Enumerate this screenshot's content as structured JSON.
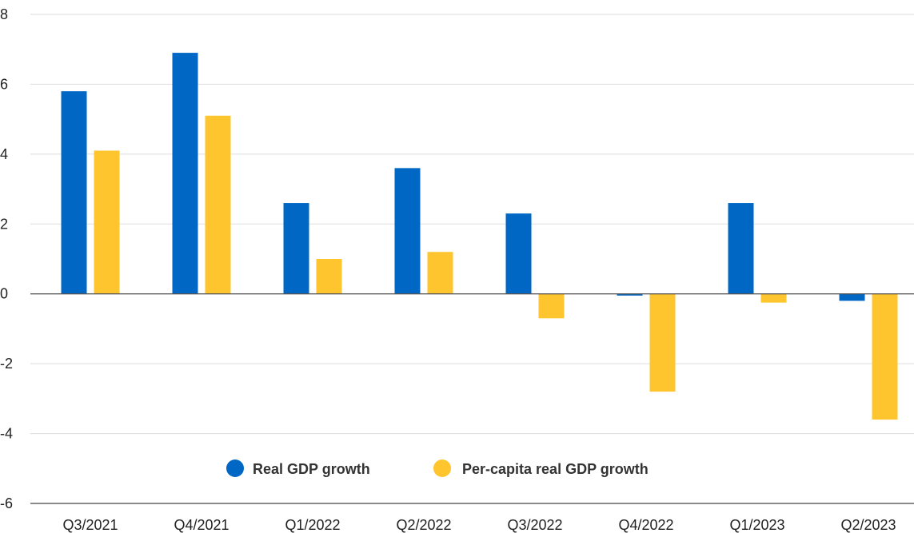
{
  "chart_data": {
    "type": "bar",
    "title": "",
    "xlabel": "",
    "ylabel": "",
    "categories": [
      "Q3/2021",
      "Q4/2021",
      "Q1/2022",
      "Q2/2022",
      "Q3/2022",
      "Q4/2022",
      "Q1/2023",
      "Q2/2023"
    ],
    "series": [
      {
        "name": "Real GDP growth",
        "color": "#0068c4",
        "values": [
          5.8,
          6.9,
          2.6,
          3.6,
          2.3,
          -0.05,
          2.6,
          -0.2
        ]
      },
      {
        "name": "Per-capita real GDP growth",
        "color": "#fec52e",
        "values": [
          4.1,
          5.1,
          1.0,
          1.2,
          -0.7,
          -2.8,
          -0.25,
          -3.6
        ]
      }
    ],
    "ylim": [
      -6,
      8
    ],
    "yticks": [
      8,
      6,
      4,
      2,
      0,
      -2,
      -4,
      -6
    ],
    "grid": true,
    "legend": {
      "position": "bottom-inside",
      "marker": "circle"
    }
  }
}
